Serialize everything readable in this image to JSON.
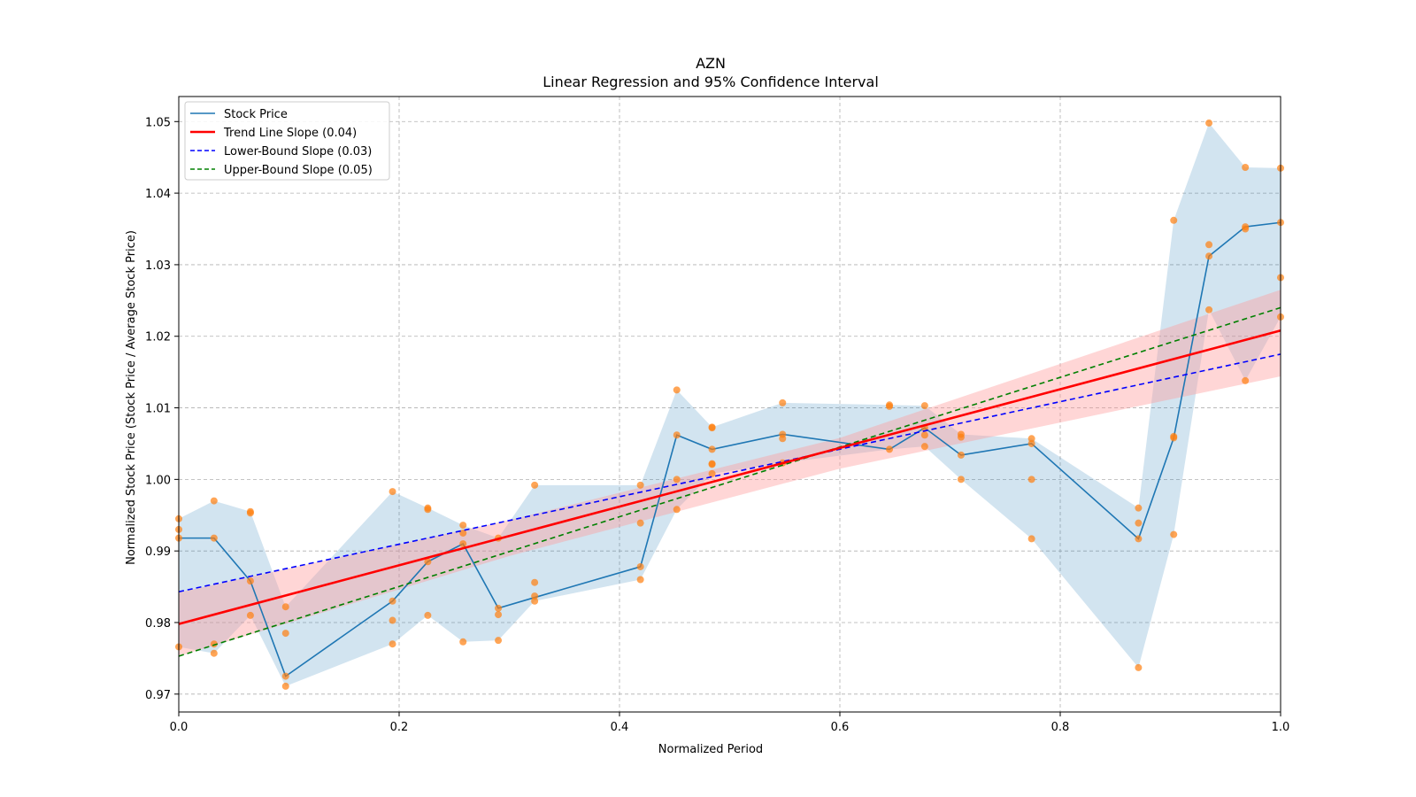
{
  "chart_data": {
    "type": "line",
    "title": "AZN",
    "subtitle": "Linear Regression and 95% Confidence Interval",
    "xlabel": "Normalized Period",
    "ylabel": "Normalized Stock Price (Stock Price / Average Stock Price)",
    "xlim": [
      0.0,
      1.0
    ],
    "ylim": [
      0.9675,
      1.0535
    ],
    "xticks": [
      0.0,
      0.2,
      0.4,
      0.6,
      0.8,
      1.0
    ],
    "xtick_labels": [
      "0.0",
      "0.2",
      "0.4",
      "0.6",
      "0.8",
      "1.0"
    ],
    "yticks": [
      0.97,
      0.98,
      0.99,
      1.0,
      1.01,
      1.02,
      1.03,
      1.04,
      1.05
    ],
    "ytick_labels": [
      "0.97",
      "0.98",
      "0.99",
      "1.00",
      "1.01",
      "1.02",
      "1.03",
      "1.04",
      "1.05"
    ],
    "grid": true,
    "legend_position": "top-left",
    "colors": {
      "stock": "#1f77b4",
      "stock_band": "#1f77b4",
      "points": "#ff7f0e",
      "trend": "#ff0000",
      "trend_band": "#ff9999",
      "lower": "#0000ff",
      "upper": "#008000",
      "grid": "#b0b0b0"
    },
    "legend": [
      {
        "label": "Stock Price",
        "color": "#1f77b4",
        "style": "solid"
      },
      {
        "label": "Trend Line Slope (0.04)",
        "color": "#ff0000",
        "style": "solid"
      },
      {
        "label": "Lower-Bound Slope (0.03)",
        "color": "#0000ff",
        "style": "dashed"
      },
      {
        "label": "Upper-Bound Slope (0.05)",
        "color": "#008000",
        "style": "dashed"
      }
    ],
    "stock_series": {
      "x": [
        0.0,
        0.032,
        0.065,
        0.097,
        0.194,
        0.226,
        0.258,
        0.29,
        0.323,
        0.419,
        0.452,
        0.484,
        0.548,
        0.645,
        0.677,
        0.71,
        0.774,
        0.871,
        0.903,
        0.935,
        0.968,
        1.0
      ],
      "y": [
        0.9918,
        0.9918,
        0.9858,
        0.9725,
        0.983,
        0.9885,
        0.991,
        0.982,
        0.9835,
        0.9878,
        1.0062,
        1.0042,
        1.0063,
        1.0042,
        1.0072,
        1.0034,
        1.005,
        0.9917,
        1.0058,
        1.0312,
        1.0353,
        1.0359
      ],
      "band_upper": [
        0.9945,
        0.997,
        0.9955,
        0.9822,
        0.9983,
        0.996,
        0.9936,
        0.9918,
        0.9992,
        0.9992,
        1.0125,
        1.0073,
        1.0107,
        1.0104,
        1.0103,
        1.0063,
        1.0057,
        0.996,
        1.0362,
        1.0498,
        1.0436,
        1.0435
      ],
      "band_lower": [
        0.9766,
        0.9757,
        0.981,
        0.9711,
        0.977,
        0.981,
        0.9773,
        0.9775,
        0.983,
        0.986,
        0.9958,
        1.0008,
        1.0023,
        1.0042,
        1.0046,
        1.0,
        0.9917,
        0.9737,
        0.9923,
        1.0237,
        1.0138,
        1.0227
      ]
    },
    "scatter_points": [
      [
        0.0,
        0.9945
      ],
      [
        0.0,
        0.993
      ],
      [
        0.0,
        0.9918
      ],
      [
        0.0,
        0.9766
      ],
      [
        0.032,
        0.997
      ],
      [
        0.032,
        0.9918
      ],
      [
        0.032,
        0.977
      ],
      [
        0.032,
        0.9757
      ],
      [
        0.065,
        0.9955
      ],
      [
        0.065,
        0.9953
      ],
      [
        0.065,
        0.9858
      ],
      [
        0.065,
        0.981
      ],
      [
        0.097,
        0.9822
      ],
      [
        0.097,
        0.9785
      ],
      [
        0.097,
        0.9725
      ],
      [
        0.097,
        0.9711
      ],
      [
        0.194,
        0.9983
      ],
      [
        0.194,
        0.983
      ],
      [
        0.194,
        0.9803
      ],
      [
        0.194,
        0.977
      ],
      [
        0.226,
        0.996
      ],
      [
        0.226,
        0.9958
      ],
      [
        0.226,
        0.9885
      ],
      [
        0.226,
        0.981
      ],
      [
        0.258,
        0.9936
      ],
      [
        0.258,
        0.9925
      ],
      [
        0.258,
        0.991
      ],
      [
        0.258,
        0.9773
      ],
      [
        0.29,
        0.9918
      ],
      [
        0.29,
        0.982
      ],
      [
        0.29,
        0.9811
      ],
      [
        0.29,
        0.9775
      ],
      [
        0.323,
        0.9992
      ],
      [
        0.323,
        0.9856
      ],
      [
        0.323,
        0.9837
      ],
      [
        0.323,
        0.983
      ],
      [
        0.419,
        0.9992
      ],
      [
        0.419,
        0.9939
      ],
      [
        0.419,
        0.9878
      ],
      [
        0.419,
        0.986
      ],
      [
        0.452,
        1.0125
      ],
      [
        0.452,
        1.0062
      ],
      [
        0.452,
        1.0
      ],
      [
        0.452,
        0.9958
      ],
      [
        0.484,
        1.0073
      ],
      [
        0.484,
        1.0072
      ],
      [
        0.484,
        1.0042
      ],
      [
        0.484,
        1.0022
      ],
      [
        0.484,
        1.0021
      ],
      [
        0.484,
        1.0008
      ],
      [
        0.548,
        1.0107
      ],
      [
        0.548,
        1.0063
      ],
      [
        0.548,
        1.0057
      ],
      [
        0.548,
        1.0023
      ],
      [
        0.645,
        1.0104
      ],
      [
        0.645,
        1.0102
      ],
      [
        0.645,
        1.0042
      ],
      [
        0.677,
        1.0103
      ],
      [
        0.677,
        1.0072
      ],
      [
        0.677,
        1.0062
      ],
      [
        0.677,
        1.0046
      ],
      [
        0.71,
        1.0063
      ],
      [
        0.71,
        1.0059
      ],
      [
        0.71,
        1.0034
      ],
      [
        0.71,
        1.0
      ],
      [
        0.774,
        1.0057
      ],
      [
        0.774,
        1.005
      ],
      [
        0.774,
        1.0
      ],
      [
        0.774,
        0.9917
      ],
      [
        0.871,
        0.996
      ],
      [
        0.871,
        0.9939
      ],
      [
        0.871,
        0.9917
      ],
      [
        0.871,
        0.9737
      ],
      [
        0.903,
        1.0362
      ],
      [
        0.903,
        1.006
      ],
      [
        0.903,
        1.0058
      ],
      [
        0.903,
        0.9923
      ],
      [
        0.935,
        1.0498
      ],
      [
        0.935,
        1.0328
      ],
      [
        0.935,
        1.0312
      ],
      [
        0.935,
        1.0237
      ],
      [
        0.968,
        1.0436
      ],
      [
        0.968,
        1.0353
      ],
      [
        0.968,
        1.035
      ],
      [
        0.968,
        1.0138
      ],
      [
        1.0,
        1.0435
      ],
      [
        1.0,
        1.0359
      ],
      [
        1.0,
        1.0282
      ],
      [
        1.0,
        1.0227
      ]
    ],
    "trend_line": {
      "x": [
        0.0,
        1.0
      ],
      "y": [
        0.9798,
        1.0208
      ]
    },
    "trend_band": {
      "x": [
        0.0,
        0.3,
        0.6,
        1.0
      ],
      "upper": [
        0.9842,
        0.9943,
        1.0058,
        1.0265
      ],
      "lower": [
        0.9753,
        0.9893,
        1.0015,
        1.0144
      ]
    },
    "lower_bound_line": {
      "x": [
        0.0,
        1.0
      ],
      "y": [
        0.9843,
        1.0175
      ]
    },
    "upper_bound_line": {
      "x": [
        0.0,
        1.0
      ],
      "y": [
        0.9753,
        1.024
      ]
    }
  }
}
